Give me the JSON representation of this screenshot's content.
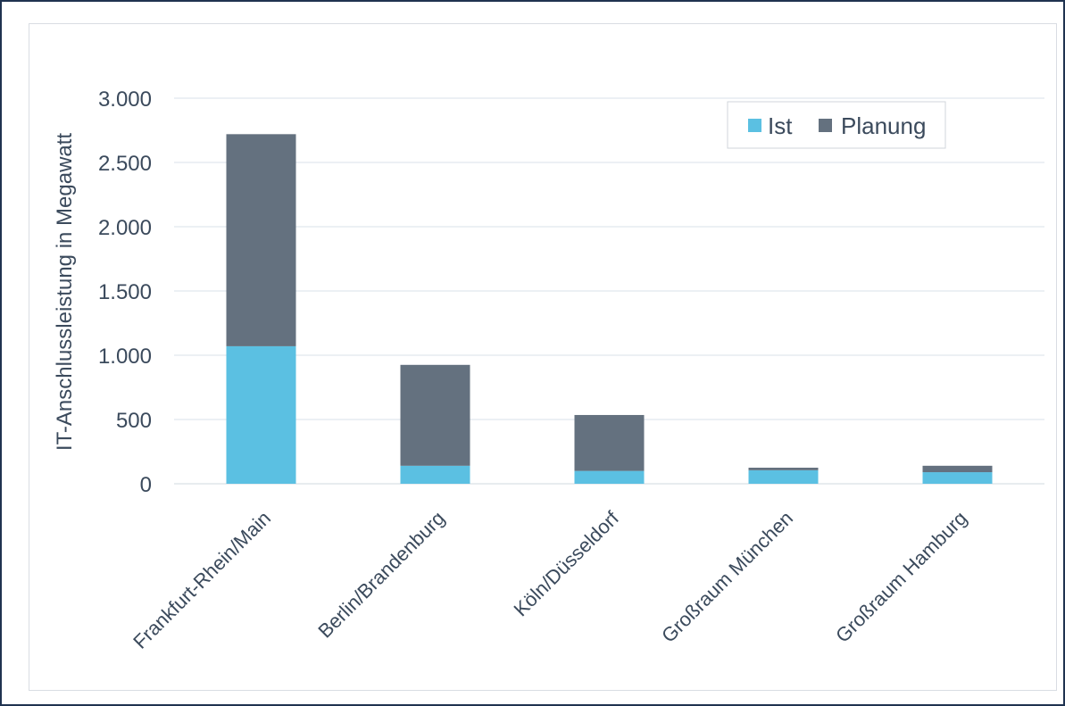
{
  "chart_data": {
    "type": "bar",
    "stacked": true,
    "categories": [
      "Frankfurt-Rhein/Main",
      "Berlin/Brandenburg",
      "Köln/Düsseldorf",
      "Großraum München",
      "Großraum Hamburg"
    ],
    "series": [
      {
        "name": "Ist",
        "color": "#5bc0e2",
        "values": [
          1070,
          140,
          100,
          105,
          90
        ]
      },
      {
        "name": "Planung",
        "color": "#64717f",
        "values": [
          1650,
          785,
          435,
          20,
          50
        ]
      }
    ],
    "ylabel": "IT-Anschlussleistung in Megawatt",
    "ylim": [
      0,
      3000
    ],
    "yticks": [
      0,
      500,
      1000,
      1500,
      2000,
      2500,
      3000
    ],
    "ytick_labels": [
      "0",
      "500",
      "1.000",
      "1.500",
      "2.000",
      "2.500",
      "3.000"
    ],
    "grid": true,
    "legend_position": "top-right"
  }
}
